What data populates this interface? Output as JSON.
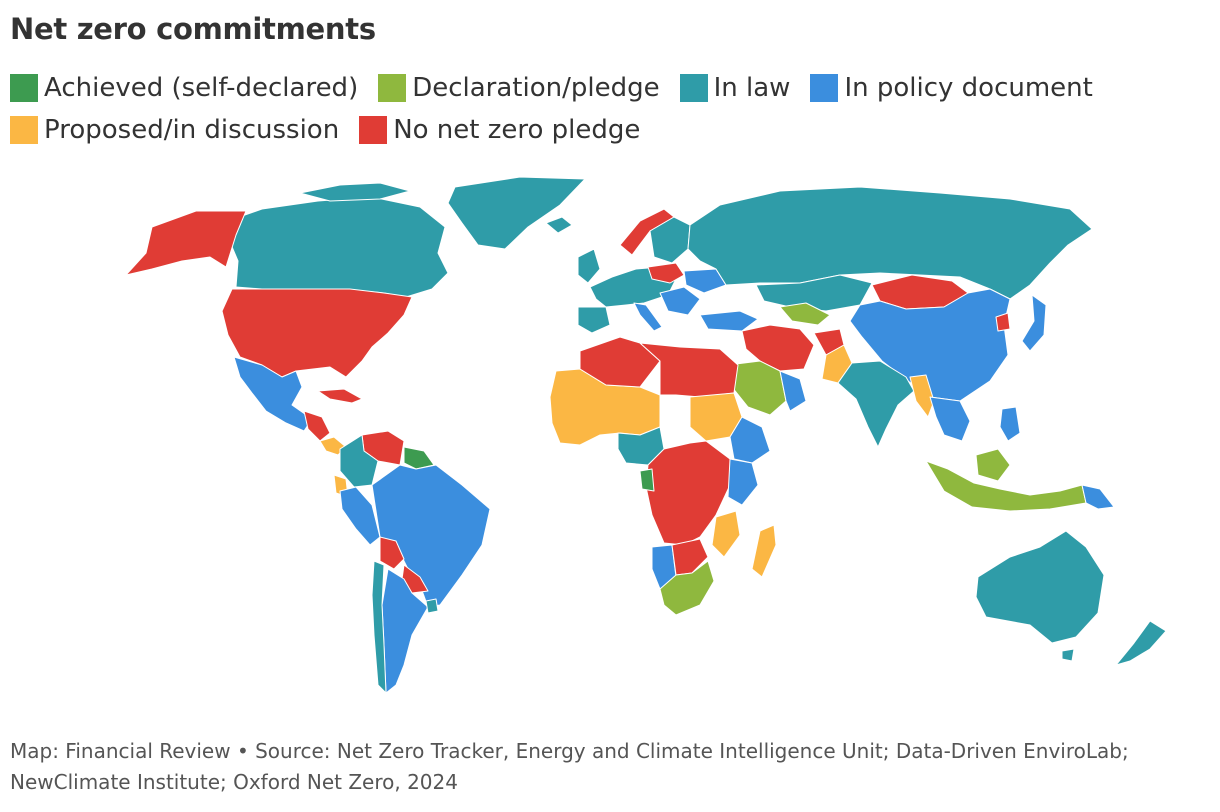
{
  "title": "Net zero commitments",
  "legend": [
    {
      "label": "Achieved (self-declared)",
      "color": "#3d9b50"
    },
    {
      "label": "Declaration/pledge",
      "color": "#8fb83e"
    },
    {
      "label": "In law",
      "color": "#2f9ca8"
    },
    {
      "label": "In policy document",
      "color": "#3b8ede"
    },
    {
      "label": "Proposed/in discussion",
      "color": "#fbb744"
    },
    {
      "label": "No net zero pledge",
      "color": "#e03c35"
    }
  ],
  "source": "Map: Financial Review • Source: Net Zero Tracker, Energy and Climate Intelligence Unit; Data-Driven EnviroLab; NewClimate Institute; Oxford Net Zero, 2024"
}
